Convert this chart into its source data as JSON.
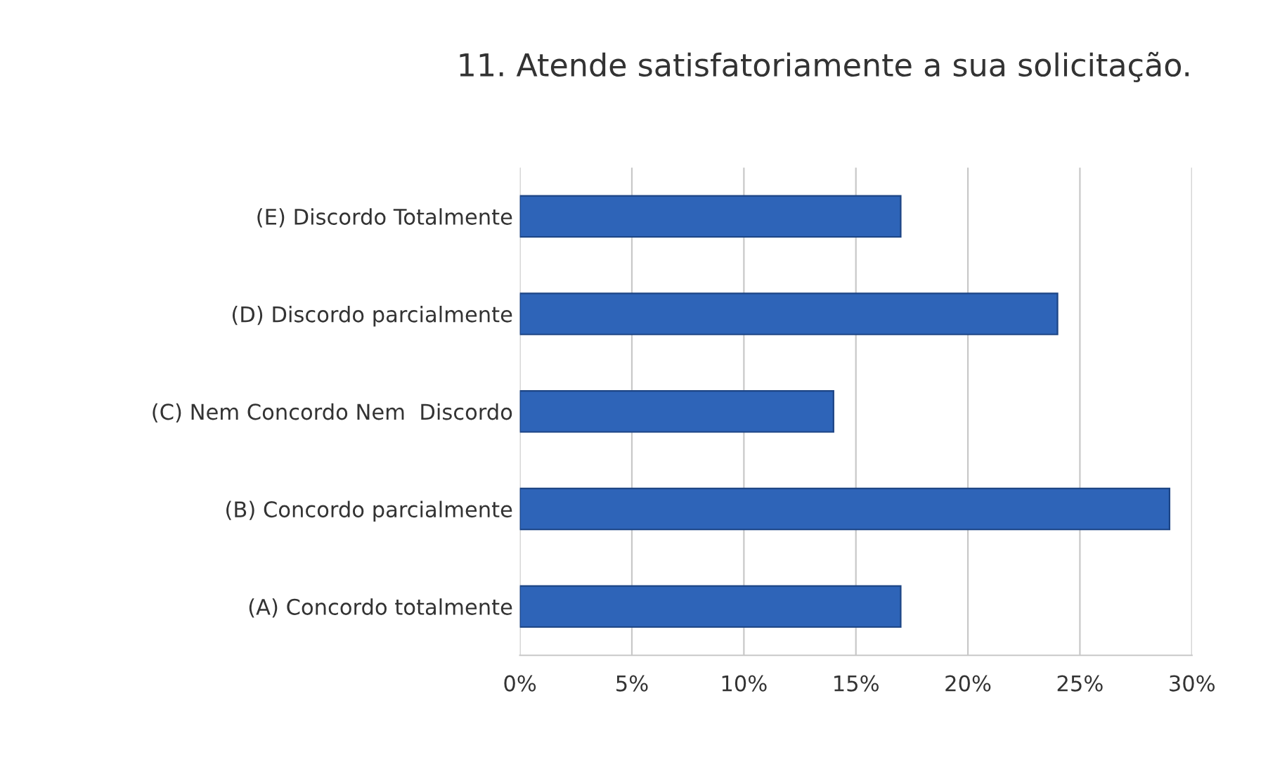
{
  "chart_data": {
    "type": "bar",
    "orientation": "horizontal",
    "title": "11. Atende satisfatoriamente a sua solicitação.",
    "categories": [
      "(E) Discordo Totalmente",
      "(D) Discordo parcialmente",
      "(C) Nem Concordo Nem  Discordo",
      "(B) Concordo parcialmente",
      "(A) Concordo totalmente"
    ],
    "values": [
      17,
      24,
      14,
      29,
      17
    ],
    "color": "#2e64b8",
    "xlim": [
      0,
      30
    ],
    "xticks": [
      {
        "value": 0,
        "label": "0%"
      },
      {
        "value": 5,
        "label": "5%"
      },
      {
        "value": 10,
        "label": "10%"
      },
      {
        "value": 15,
        "label": "15%"
      },
      {
        "value": 20,
        "label": "20%"
      },
      {
        "value": 25,
        "label": "25%"
      },
      {
        "value": 30,
        "label": "30%"
      }
    ],
    "grid": "x",
    "legend": false
  }
}
